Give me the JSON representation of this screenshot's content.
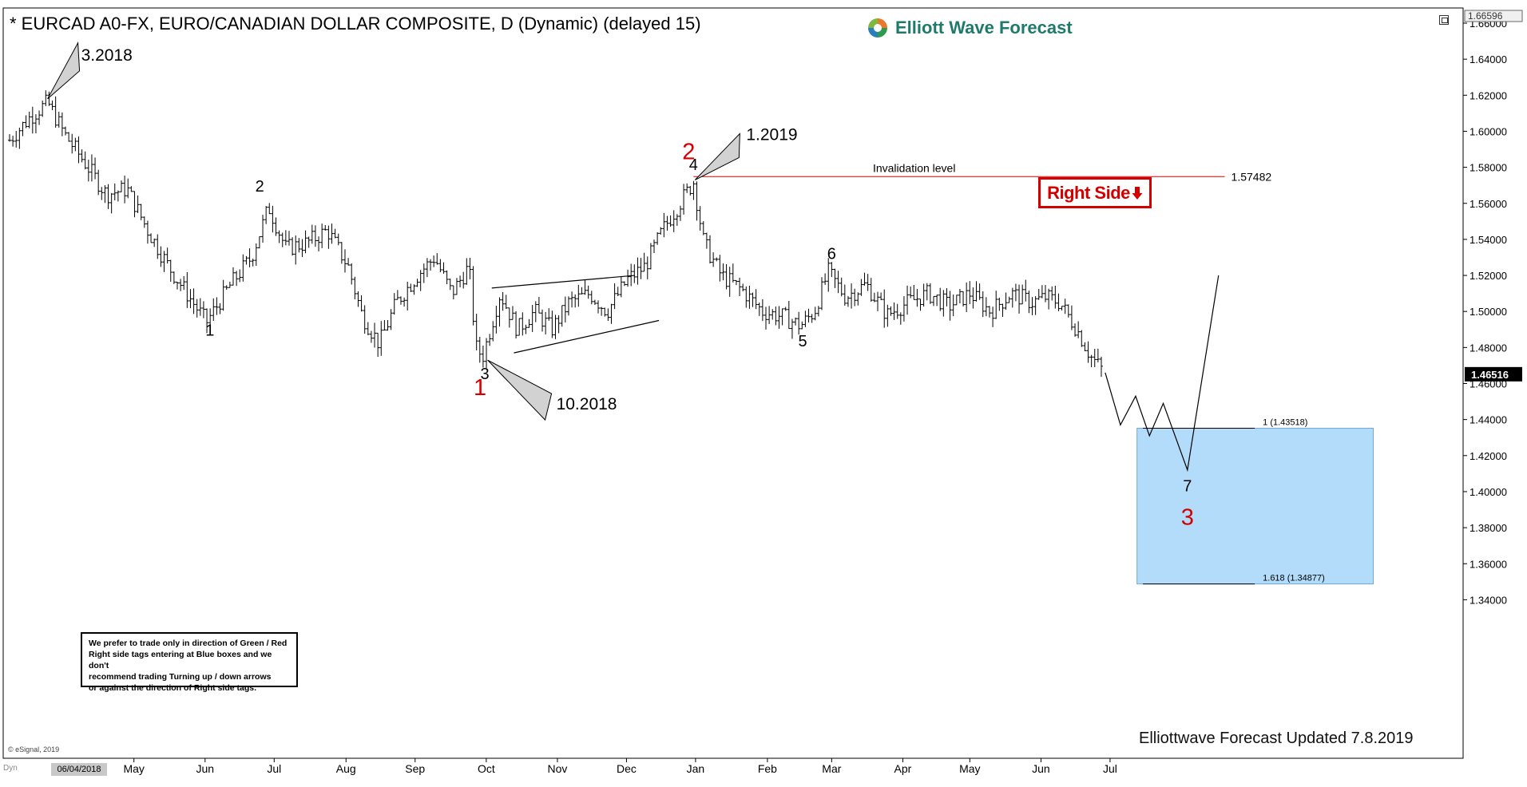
{
  "header": {
    "title": "* EURCAD A0-FX, EURO/CANADIAN DOLLAR COMPOSITE, D (Dynamic) (delayed 15)"
  },
  "logo": {
    "text": "Elliott Wave Forecast",
    "icon": "elliott-wave-logo-icon"
  },
  "note": "We prefer to trade only in direction of Green / Red\nRight side tags entering at Blue boxes and we don't\nrecommend trading Turning up / down arrows\nor against the direction of Right side tags.",
  "footer": "Elliottwave Forecast Updated 7.8.2019",
  "copyright": "© eSignal, 2019",
  "dyn_label": "Dyn",
  "date_stamp": "06/04/2018",
  "right_side_tag": "Right Side",
  "colors": {
    "accent_red": "#d40000",
    "blue_box": "#b3dcfa",
    "blue_box_border": "#6aa8d8",
    "logo_green": "#1f7a6b"
  },
  "chart_data": {
    "type": "ohlc",
    "title": "* EURCAD A0-FX, EURO/CANADIAN DOLLAR COMPOSITE, D (Dynamic) (delayed 15)",
    "ylim": [
      1.335,
      1.667
    ],
    "y_ticks": [
      "1.66000",
      "1.64000",
      "1.62000",
      "1.60000",
      "1.58000",
      "1.56000",
      "1.54000",
      "1.52000",
      "1.50000",
      "1.48000",
      "1.46000",
      "1.44000",
      "1.42000",
      "1.40000",
      "1.38000",
      "1.36000",
      "1.34000"
    ],
    "y_top_label": "1.66596",
    "current_price_label": "1.46516",
    "current_price": 1.46516,
    "x_ticks": [
      "May",
      "Jun",
      "Jul",
      "Aug",
      "Sep",
      "Oct",
      "Nov",
      "Dec",
      "Jan",
      "Feb",
      "Mar",
      "Apr",
      "May",
      "Jun",
      "Jul"
    ],
    "x_tick_months": [
      1.8,
      2.83,
      3.83,
      4.87,
      5.87,
      6.9,
      7.93,
      8.93,
      9.93,
      10.97,
      11.9,
      12.93,
      13.9,
      14.93,
      15.93
    ],
    "price_path": [
      [
        0.0,
        1.595
      ],
      [
        0.3,
        1.608
      ],
      [
        0.55,
        1.616
      ],
      [
        0.8,
        1.598
      ],
      [
        1.1,
        1.582
      ],
      [
        1.4,
        1.565
      ],
      [
        1.7,
        1.568
      ],
      [
        2.0,
        1.545
      ],
      [
        2.3,
        1.525
      ],
      [
        2.6,
        1.508
      ],
      [
        2.85,
        1.494
      ],
      [
        3.2,
        1.515
      ],
      [
        3.5,
        1.53
      ],
      [
        3.75,
        1.558
      ],
      [
        4.0,
        1.535
      ],
      [
        4.3,
        1.538
      ],
      [
        4.6,
        1.545
      ],
      [
        4.9,
        1.525
      ],
      [
        5.1,
        1.498
      ],
      [
        5.35,
        1.482
      ],
      [
        5.6,
        1.505
      ],
      [
        5.9,
        1.52
      ],
      [
        6.15,
        1.53
      ],
      [
        6.4,
        1.51
      ],
      [
        6.65,
        1.525
      ],
      [
        6.75,
        1.48
      ],
      [
        6.85,
        1.475
      ],
      [
        7.1,
        1.51
      ],
      [
        7.35,
        1.49
      ],
      [
        7.6,
        1.5
      ],
      [
        7.85,
        1.49
      ],
      [
        8.1,
        1.505
      ],
      [
        8.4,
        1.51
      ],
      [
        8.65,
        1.5
      ],
      [
        8.95,
        1.518
      ],
      [
        9.2,
        1.525
      ],
      [
        9.45,
        1.545
      ],
      [
        9.7,
        1.56
      ],
      [
        9.9,
        1.572
      ],
      [
        10.05,
        1.538
      ],
      [
        10.3,
        1.52
      ],
      [
        10.6,
        1.512
      ],
      [
        10.9,
        1.5
      ],
      [
        11.2,
        1.497
      ],
      [
        11.45,
        1.492
      ],
      [
        11.65,
        1.5
      ],
      [
        11.85,
        1.522
      ],
      [
        12.1,
        1.508
      ],
      [
        12.4,
        1.515
      ],
      [
        12.7,
        1.498
      ],
      [
        13.0,
        1.505
      ],
      [
        13.3,
        1.51
      ],
      [
        13.6,
        1.503
      ],
      [
        13.9,
        1.51
      ],
      [
        14.2,
        1.5
      ],
      [
        14.5,
        1.51
      ],
      [
        14.8,
        1.505
      ],
      [
        15.0,
        1.508
      ],
      [
        15.2,
        1.505
      ],
      [
        15.45,
        1.49
      ],
      [
        15.65,
        1.475
      ],
      [
        15.85,
        1.466
      ]
    ],
    "projection_path": [
      [
        15.86,
        1.466
      ],
      [
        16.08,
        1.437
      ],
      [
        16.3,
        1.453
      ],
      [
        16.5,
        1.431
      ],
      [
        16.7,
        1.449
      ],
      [
        17.05,
        1.412
      ],
      [
        17.5,
        1.52
      ]
    ],
    "triangle_lines": [
      [
        [
          6.98,
          1.513
        ],
        [
          9.05,
          1.52
        ]
      ],
      [
        [
          7.3,
          1.477
        ],
        [
          9.4,
          1.495
        ]
      ]
    ],
    "invalidation": {
      "label": "Invalidation level",
      "value": 1.57482,
      "value_label": "1.57482",
      "x_start": 9.9,
      "x_end": 17.59
    },
    "blue_box": {
      "x_start": 16.32,
      "x_end": 19.74,
      "y_top": 1.43518,
      "y_bottom": 1.34877
    },
    "fib_levels": [
      {
        "label": "1 (1.43518)",
        "value": 1.43518,
        "x_start": 17.1
      },
      {
        "label": "1.618 (1.34877)",
        "value": 1.34877,
        "x_start": 17.1
      }
    ],
    "wave_labels_black": [
      {
        "text": "1",
        "x": 2.9,
        "y": 1.4865
      },
      {
        "text": "2",
        "x": 3.62,
        "y": 1.5665
      },
      {
        "text": "3",
        "x": 6.88,
        "y": 1.4625
      },
      {
        "text": "4",
        "x": 9.9,
        "y": 1.5785
      },
      {
        "text": "5",
        "x": 11.48,
        "y": 1.4805
      },
      {
        "text": "6",
        "x": 11.9,
        "y": 1.529
      },
      {
        "text": "7",
        "x": 17.05,
        "y": 1.4003
      }
    ],
    "wave_labels_red": [
      {
        "text": "1",
        "x": 6.81,
        "y": 1.4535
      },
      {
        "text": "2",
        "x": 9.83,
        "y": 1.5845
      },
      {
        "text": "3",
        "x": 17.05,
        "y": 1.3815
      }
    ],
    "turning_arrows": [
      {
        "text": "3.2018",
        "direction": "down",
        "x": 0.55,
        "y": 1.618
      },
      {
        "text": "10.2018",
        "direction": "up",
        "x": 6.92,
        "y": 1.473
      },
      {
        "text": "1.2019",
        "direction": "down",
        "x": 9.9,
        "y": 1.573
      }
    ]
  }
}
